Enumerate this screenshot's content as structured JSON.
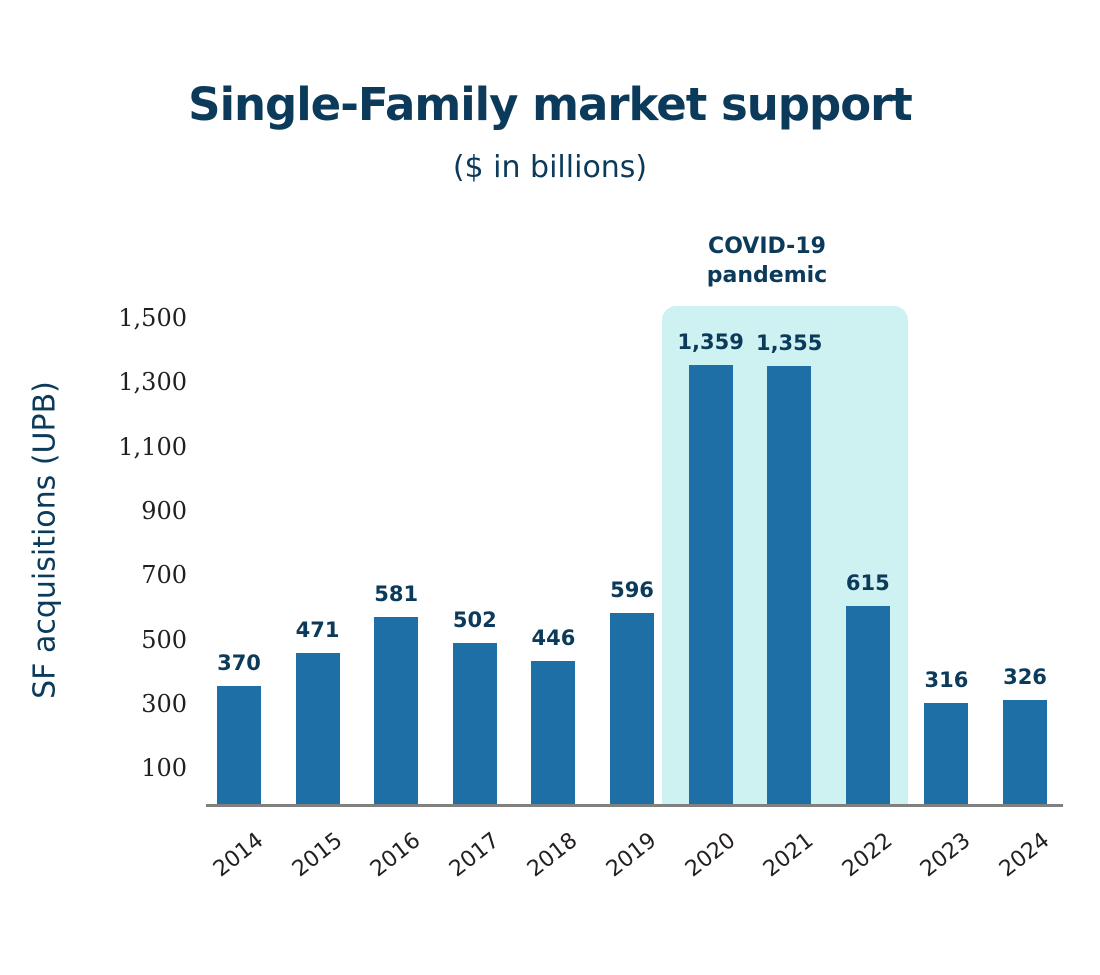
{
  "header": {
    "title": "Single-Family market support",
    "subtitle": "($ in billions)"
  },
  "annotation": {
    "band_label_line1": "COVID-19",
    "band_label_line2": "pandemic",
    "band_years": [
      "2020",
      "2021",
      "2022"
    ],
    "band_color": "#cef1f2"
  },
  "colors": {
    "bar": "#1d6fa5",
    "title": "#0b3a5b",
    "axis": "#808080"
  },
  "chart_data": {
    "type": "bar",
    "title": "Single-Family market support",
    "subtitle": "($ in billions)",
    "xlabel": "",
    "ylabel": "SF acquisitions (UPB)",
    "categories": [
      "2014",
      "2015",
      "2016",
      "2017",
      "2018",
      "2019",
      "2020",
      "2021",
      "2022",
      "2023",
      "2024"
    ],
    "values": [
      370,
      471,
      581,
      502,
      446,
      596,
      1359,
      1355,
      615,
      316,
      326
    ],
    "value_labels": [
      "370",
      "471",
      "581",
      "502",
      "446",
      "596",
      "1,359",
      "1,355",
      "615",
      "316",
      "326"
    ],
    "yticks": [
      "1,500",
      "1,300",
      "1,100",
      "900",
      "700",
      "500",
      "300",
      "100"
    ],
    "ylim": [
      0,
      1500
    ],
    "grid": false,
    "legend": null,
    "annotations": [
      {
        "text": "COVID-19 pandemic",
        "span": [
          "2020",
          "2022"
        ]
      }
    ]
  }
}
